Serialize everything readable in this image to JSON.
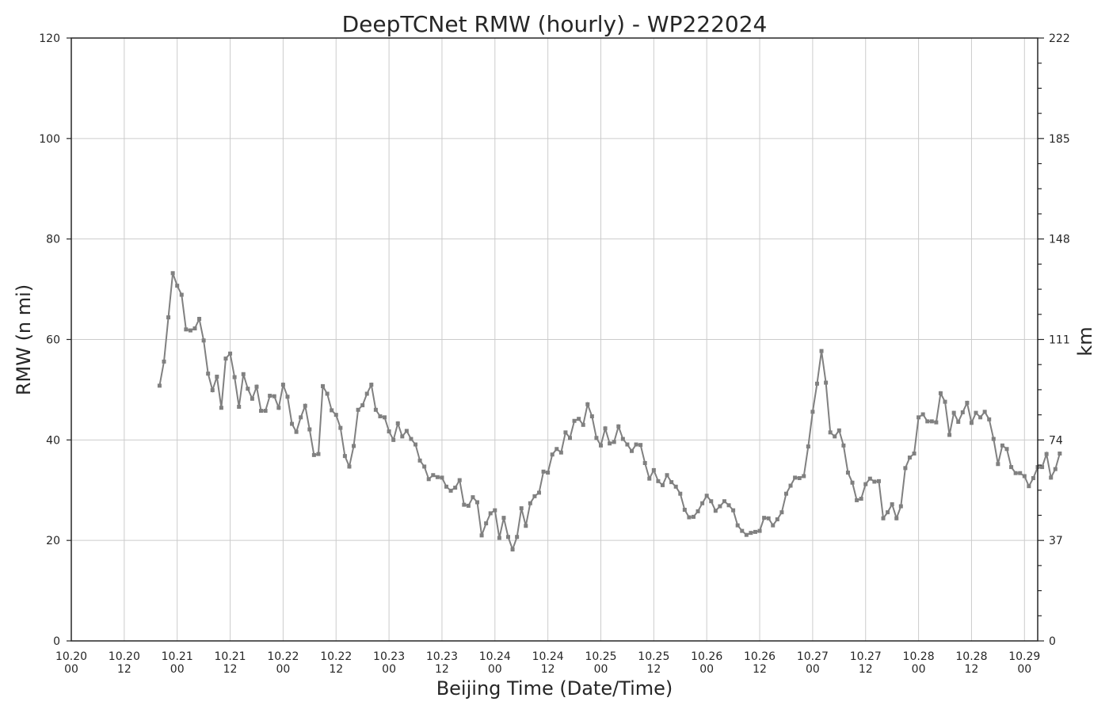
{
  "chart_data": {
    "type": "line",
    "title": "DeepTCNet RMW (hourly) - WP222024",
    "xlabel": "Beijing Time (Date/Time)",
    "ylabel": "RMW (n mi)",
    "y2label": "km",
    "ylim": [
      0,
      120
    ],
    "yticks": [
      0,
      20,
      40,
      60,
      80,
      100,
      120
    ],
    "y2ticks": [
      "0",
      "37",
      "74",
      "111",
      "148",
      "185",
      "222"
    ],
    "xlim_hours": [
      0,
      219
    ],
    "xticks": [
      {
        "h": 0,
        "l1": "10.20",
        "l2": "00"
      },
      {
        "h": 12,
        "l1": "10.20",
        "l2": "12"
      },
      {
        "h": 24,
        "l1": "10.21",
        "l2": "00"
      },
      {
        "h": 36,
        "l1": "10.21",
        "l2": "12"
      },
      {
        "h": 48,
        "l1": "10.22",
        "l2": "00"
      },
      {
        "h": 60,
        "l1": "10.22",
        "l2": "12"
      },
      {
        "h": 72,
        "l1": "10.23",
        "l2": "00"
      },
      {
        "h": 84,
        "l1": "10.23",
        "l2": "12"
      },
      {
        "h": 96,
        "l1": "10.24",
        "l2": "00"
      },
      {
        "h": 108,
        "l1": "10.24",
        "l2": "12"
      },
      {
        "h": 120,
        "l1": "10.25",
        "l2": "00"
      },
      {
        "h": 132,
        "l1": "10.25",
        "l2": "12"
      },
      {
        "h": 144,
        "l1": "10.26",
        "l2": "00"
      },
      {
        "h": 156,
        "l1": "10.26",
        "l2": "12"
      },
      {
        "h": 168,
        "l1": "10.27",
        "l2": "00"
      },
      {
        "h": 180,
        "l1": "10.27",
        "l2": "12"
      },
      {
        "h": 192,
        "l1": "10.28",
        "l2": "00"
      },
      {
        "h": 204,
        "l1": "10.28",
        "l2": "12"
      },
      {
        "h": 216,
        "l1": "10.29",
        "l2": "00"
      }
    ],
    "grid": true,
    "line_color": "#808080",
    "series": [
      {
        "start_hour": 20,
        "values": [
          50.8,
          55.6,
          64.4,
          73.2,
          70.7,
          68.9,
          62.0,
          61.8,
          62.2,
          64.1,
          59.8,
          53.2,
          49.9,
          52.6,
          46.4,
          56.2,
          57.2,
          52.5,
          46.6,
          53.1,
          50.2,
          48.2,
          50.6,
          45.8,
          45.8,
          48.8,
          48.7,
          46.4,
          51.0,
          48.6,
          43.2,
          41.6,
          44.5,
          46.8,
          42.1,
          37.0,
          37.2,
          50.7,
          49.2,
          45.9,
          45.0,
          42.4,
          36.8,
          34.7,
          38.8,
          46.0,
          46.9,
          49.2,
          51.0,
          46.0,
          44.7,
          44.5,
          41.7,
          40.0,
          43.3,
          40.7,
          41.8,
          40.2,
          39.1,
          35.9,
          34.7,
          32.2,
          33.0,
          32.6,
          32.5,
          30.7,
          29.9,
          30.5,
          32.0,
          27.1,
          26.9,
          28.6,
          27.6,
          21.0,
          23.4,
          25.4,
          26.0,
          20.5,
          24.5,
          20.7,
          18.2,
          20.7,
          26.4,
          22.9,
          27.4,
          28.8,
          29.5,
          33.7,
          33.5,
          37.1,
          38.2,
          37.5,
          41.5,
          40.4,
          43.8,
          44.2,
          43.0,
          47.1,
          44.7,
          40.4,
          38.9,
          42.3,
          39.3,
          39.6,
          42.7,
          40.2,
          39.1,
          37.8,
          39.1,
          39.0,
          35.4,
          32.3,
          34.0,
          31.8,
          31.0,
          33.0,
          31.6,
          30.7,
          29.3,
          26.1,
          24.6,
          24.7,
          25.8,
          27.4,
          28.9,
          27.8,
          25.9,
          26.8,
          27.8,
          27.0,
          26.0,
          23.0,
          21.9,
          21.1,
          21.5,
          21.7,
          21.9,
          24.5,
          24.4,
          23.0,
          24.2,
          25.6,
          29.3,
          30.9,
          32.5,
          32.4,
          32.8,
          38.7,
          45.6,
          51.2,
          57.7,
          51.4,
          41.5,
          40.7,
          41.9,
          38.9,
          33.5,
          31.5,
          28.0,
          28.3,
          31.2,
          32.3,
          31.7,
          31.8,
          24.4,
          25.6,
          27.2,
          24.4,
          26.8,
          34.4,
          36.5,
          37.3,
          44.5,
          45.1,
          43.7,
          43.7,
          43.5,
          49.3,
          47.6,
          41.0,
          45.4,
          43.6,
          45.5,
          47.4,
          43.4,
          45.4,
          44.5,
          45.6,
          44.1,
          40.2,
          35.2,
          38.9,
          38.2,
          34.6,
          33.4,
          33.4,
          32.8,
          30.8,
          32.4,
          34.6,
          34.6,
          37.2,
          32.5,
          34.2,
          37.3
        ]
      }
    ]
  }
}
